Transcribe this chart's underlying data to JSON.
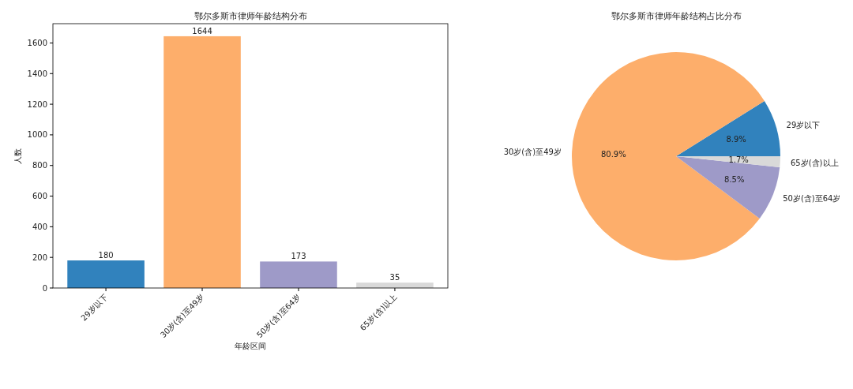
{
  "chart_data": [
    {
      "type": "bar",
      "title": "鄂尔多斯市律师年龄结构分布",
      "xlabel": "年龄区间",
      "ylabel": "人数",
      "categories": [
        "29岁以下",
        "30岁(含)至49岁",
        "50岁(含)至64岁",
        "65岁(含)以上"
      ],
      "values": [
        180,
        1644,
        173,
        35
      ],
      "colors": [
        "#3182bd",
        "#fdae6b",
        "#9e9ac8",
        "#d9d9d9"
      ],
      "ylim": [
        0,
        1726
      ],
      "yticks": [
        0,
        200,
        400,
        600,
        800,
        1000,
        1200,
        1400,
        1600
      ],
      "data_labels": true
    },
    {
      "type": "pie",
      "title": "鄂尔多斯市律师年龄结构占比分布",
      "categories": [
        "29岁以下",
        "30岁(含)至49岁",
        "50岁(含)至64岁",
        "65岁(含)以上"
      ],
      "values": [
        8.9,
        80.9,
        8.5,
        1.7
      ],
      "colors": [
        "#3182bd",
        "#fdae6b",
        "#9e9ac8",
        "#d9d9d9"
      ],
      "value_labels": [
        "8.9%",
        "80.9%",
        "8.5%",
        "1.7%"
      ]
    }
  ]
}
